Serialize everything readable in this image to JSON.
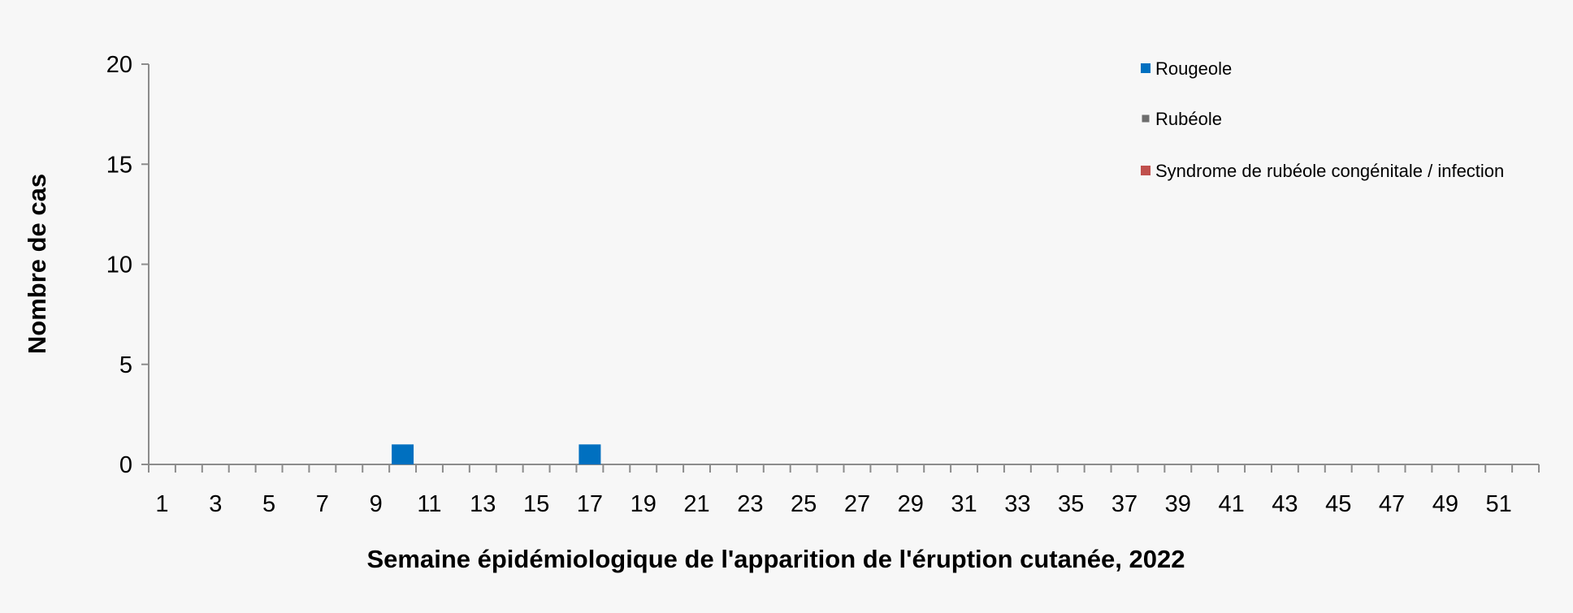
{
  "chart_data": {
    "type": "bar",
    "title": "",
    "xlabel": "Semaine épidémiologique de l'apparition de l'éruption cutanée, 2022",
    "ylabel": "Nombre de cas",
    "ylim": [
      0,
      20
    ],
    "yticks": [
      0,
      5,
      10,
      15,
      20
    ],
    "x": [
      1,
      2,
      3,
      4,
      5,
      6,
      7,
      8,
      9,
      10,
      11,
      12,
      13,
      14,
      15,
      16,
      17,
      18,
      19,
      20,
      21,
      22,
      23,
      24,
      25,
      26,
      27,
      28,
      29,
      30,
      31,
      32,
      33,
      34,
      35,
      36,
      37,
      38,
      39,
      40,
      41,
      42,
      43,
      44,
      45,
      46,
      47,
      48,
      49,
      50,
      51,
      52
    ],
    "xtick_labels": [
      "1",
      "3",
      "5",
      "7",
      "9",
      "11",
      "13",
      "15",
      "17",
      "19",
      "21",
      "23",
      "25",
      "27",
      "29",
      "31",
      "33",
      "35",
      "37",
      "39",
      "41",
      "43",
      "45",
      "47",
      "49",
      "51"
    ],
    "stacked": true,
    "grid": false,
    "legend_position": "top-right",
    "series": [
      {
        "name": "Rougeole",
        "color": "#0070c0",
        "points": [
          {
            "x": 10,
            "y": 1
          },
          {
            "x": 17,
            "y": 1
          }
        ]
      },
      {
        "name": "Rubéole",
        "color": "#6d6d6d",
        "points": []
      },
      {
        "name": "Syndrome de rubéole congénitale / infection",
        "color": "#c0504d",
        "points": []
      }
    ]
  }
}
